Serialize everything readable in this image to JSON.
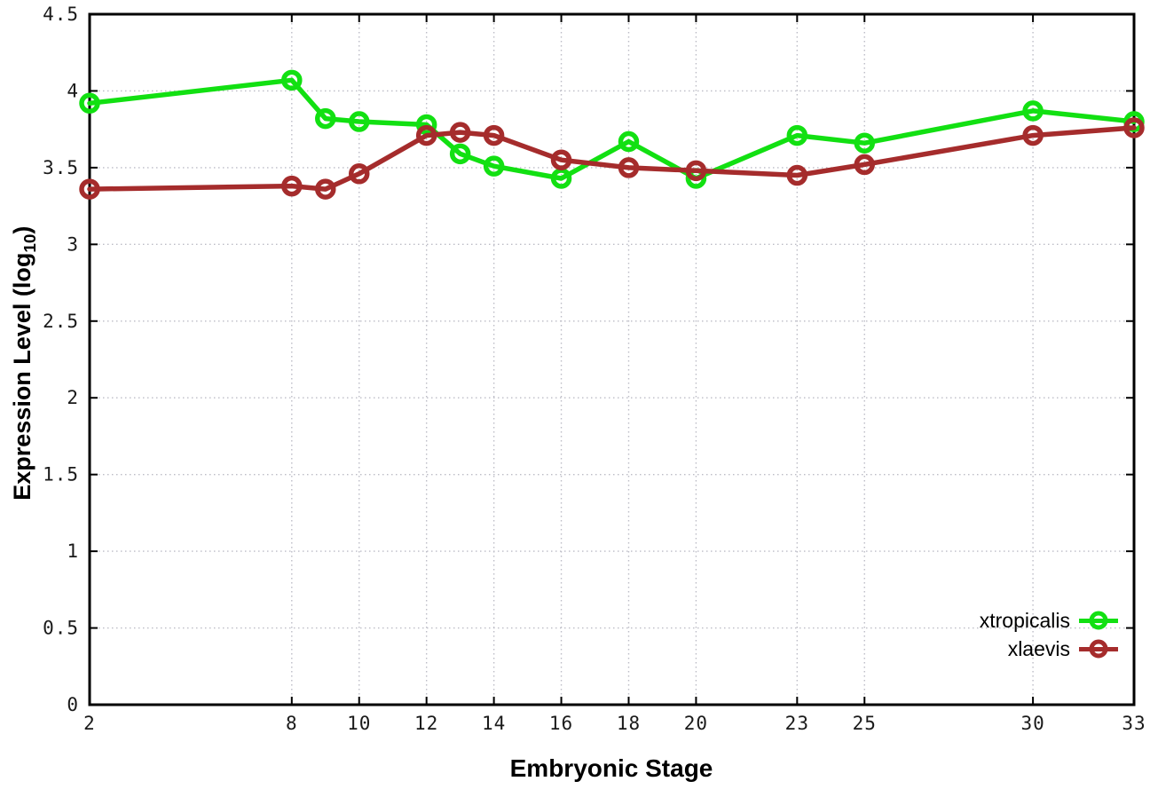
{
  "figure": {
    "x_axis_title": "Embryonic Stage",
    "y_axis_title_main": "Expression Level (log",
    "y_axis_title_sub": "10",
    "y_axis_title_close": ")"
  },
  "chart_data": {
    "type": "line",
    "title": "",
    "xlabel": "Embryonic Stage",
    "ylabel": "Expression Level (log10)",
    "x": [
      2,
      8,
      9,
      10,
      12,
      13,
      14,
      16,
      18,
      20,
      23,
      25,
      30,
      33
    ],
    "series": [
      {
        "name": "xtropicalis",
        "color": "#12e012",
        "values": [
          3.92,
          4.07,
          3.82,
          3.8,
          3.78,
          3.59,
          3.51,
          3.43,
          3.67,
          3.43,
          3.71,
          3.66,
          3.87,
          3.8
        ]
      },
      {
        "name": "xlaevis",
        "color": "#a52c2c",
        "values": [
          3.36,
          3.38,
          3.36,
          3.46,
          3.71,
          3.73,
          3.71,
          3.55,
          3.5,
          3.48,
          3.45,
          3.52,
          3.71,
          3.76
        ]
      }
    ],
    "xlim": [
      2,
      33
    ],
    "ylim": [
      0,
      4.5
    ],
    "x_tick_values": [
      2,
      8,
      10,
      12,
      14,
      16,
      18,
      20,
      23,
      25,
      30,
      33
    ],
    "x_tick_labels": [
      "2",
      "8",
      "10",
      "12",
      "14",
      "16",
      "18",
      "20",
      "23",
      "25",
      "30",
      "33"
    ],
    "y_tick_values": [
      0,
      0.5,
      1,
      1.5,
      2,
      2.5,
      3,
      3.5,
      4,
      4.5
    ],
    "y_tick_labels": [
      "0",
      "0.5",
      "1",
      "1.5",
      "2",
      "2.5",
      "3",
      "3.5",
      "4",
      "4.5"
    ],
    "grid": true,
    "legend_position": "bottom-right",
    "axis_color": "#000000",
    "grid_color": "#bcbcc6",
    "line_width": 5.5,
    "marker_radius": 9,
    "marker_stroke": 5.5
  }
}
